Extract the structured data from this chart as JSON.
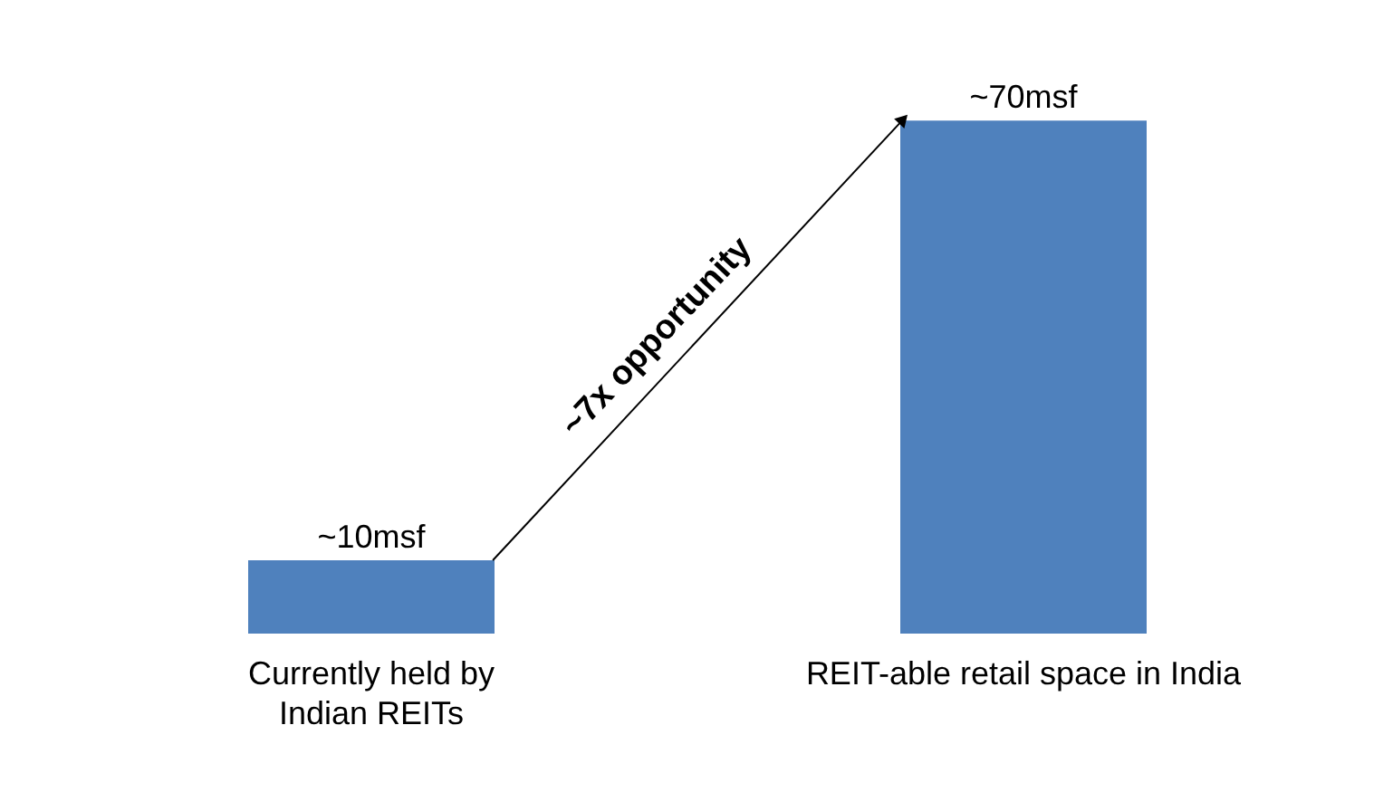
{
  "chart_data": {
    "type": "bar",
    "categories": [
      "Currently held by Indian REITs",
      "REIT-able retail space in India"
    ],
    "values": [
      10,
      70
    ],
    "color": "#4f81bd",
    "value_labels": [
      "~10msf",
      "~70msf"
    ],
    "annotations": [
      "~7x opportunity"
    ]
  }
}
